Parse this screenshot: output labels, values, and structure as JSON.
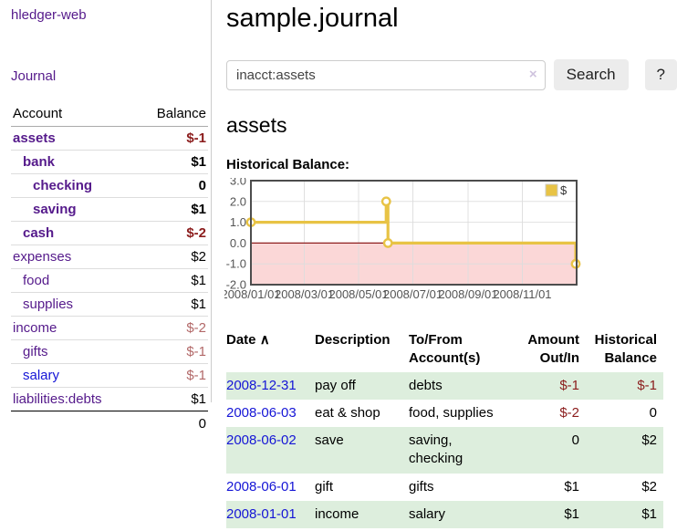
{
  "app": {
    "title": "hledger-web",
    "nav_journal": "Journal"
  },
  "sidebar": {
    "headers": {
      "account": "Account",
      "balance": "Balance"
    },
    "accounts": [
      {
        "name": "assets",
        "indent": 0,
        "bold": true,
        "balance": "$-1",
        "neg": "strong"
      },
      {
        "name": "bank",
        "indent": 1,
        "bold": true,
        "balance": "$1",
        "neg": "none"
      },
      {
        "name": "checking",
        "indent": 2,
        "bold": true,
        "balance": "0",
        "neg": "none"
      },
      {
        "name": "saving",
        "indent": 2,
        "bold": true,
        "balance": "$1",
        "neg": "none"
      },
      {
        "name": "cash",
        "indent": 1,
        "bold": true,
        "balance": "$-2",
        "neg": "strong"
      },
      {
        "name": "expenses",
        "indent": 0,
        "bold": false,
        "balance": "$2",
        "neg": "none"
      },
      {
        "name": "food",
        "indent": 1,
        "bold": false,
        "balance": "$1",
        "neg": "none"
      },
      {
        "name": "supplies",
        "indent": 1,
        "bold": false,
        "balance": "$1",
        "neg": "none"
      },
      {
        "name": "income",
        "indent": 0,
        "bold": false,
        "balance": "$-2",
        "neg": "soft"
      },
      {
        "name": "gifts",
        "indent": 1,
        "bold": false,
        "balance": "$-1",
        "neg": "soft"
      },
      {
        "name": "salary",
        "indent": 1,
        "bold": false,
        "balance": "$-1",
        "neg": "soft",
        "blue": true
      },
      {
        "name": "liabilities:debts",
        "indent": 0,
        "bold": false,
        "balance": "$1",
        "neg": "none",
        "total_border": true
      }
    ],
    "grand_total": "0"
  },
  "header": {
    "title": "sample.journal"
  },
  "search": {
    "value": "inacct:assets",
    "clear_icon": "×",
    "search_button": "Search",
    "help_button": "?"
  },
  "account_page": {
    "heading": "assets",
    "chart_label": "Historical Balance:"
  },
  "chart_data": {
    "type": "line",
    "title": "Historical Balance",
    "step": true,
    "series": [
      {
        "name": "$",
        "points": [
          [
            "2008-01-01",
            1
          ],
          [
            "2008-06-01",
            2
          ],
          [
            "2008-06-03",
            0
          ],
          [
            "2008-12-31",
            -1
          ]
        ]
      }
    ],
    "xdomain": [
      "2008-01-01",
      "2009-01-01"
    ],
    "ylim": [
      -2,
      3
    ],
    "yticks": [
      3.0,
      2.0,
      1.0,
      0.0,
      -1.0,
      -2.0
    ],
    "ytick_labels": [
      "3.0",
      "2.0",
      "1.0",
      "0.0",
      "-1.0",
      "-2.0"
    ],
    "xtick_labels": [
      "2008/01/01",
      "2008/03/01",
      "2008/05/01",
      "2008/07/01",
      "2008/09/01",
      "2008/11/01"
    ],
    "legend": "$",
    "legend_position": "top-right",
    "grid": true,
    "colors": {
      "line": "#e8c345",
      "marker_fill": "#ffffff",
      "negative_region": "#fbd7d7",
      "zero_line": "#8f1f1f",
      "border": "#4d4d4d",
      "gridline": "#dddddd",
      "tick_text": "#545454"
    }
  },
  "register": {
    "headers": {
      "date": "Date",
      "sort_icon": "∧",
      "description": "Description",
      "accounts": "To/From Account(s)",
      "amount": "Amount Out/In",
      "balance": "Historical Balance"
    },
    "rows": [
      {
        "date": "2008-12-31",
        "description": "pay off",
        "accounts": "debts",
        "amount": "$-1",
        "amount_neg": true,
        "balance": "$-1",
        "balance_neg": true,
        "shaded": true
      },
      {
        "date": "2008-06-03",
        "description": "eat & shop",
        "accounts": "food, supplies",
        "amount": "$-2",
        "amount_neg": true,
        "balance": "0",
        "balance_neg": false,
        "shaded": false
      },
      {
        "date": "2008-06-02",
        "description": "save",
        "accounts": "saving, checking",
        "amount": "0",
        "amount_neg": false,
        "balance": "$2",
        "balance_neg": false,
        "shaded": true
      },
      {
        "date": "2008-06-01",
        "description": "gift",
        "accounts": "gifts",
        "amount": "$1",
        "amount_neg": false,
        "balance": "$2",
        "balance_neg": false,
        "shaded": false
      },
      {
        "date": "2008-01-01",
        "description": "income",
        "accounts": "salary",
        "amount": "$1",
        "amount_neg": false,
        "balance": "$1",
        "balance_neg": false,
        "shaded": true
      }
    ]
  }
}
